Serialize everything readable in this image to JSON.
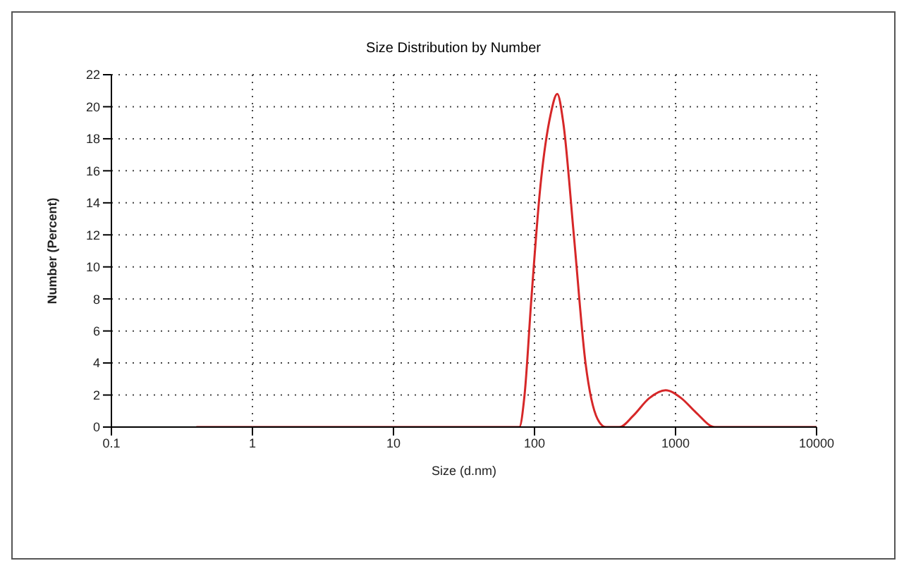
{
  "chart_data": {
    "type": "line",
    "title": "Size Distribution by Number",
    "xlabel": "Size (d.nm)",
    "ylabel": "Number (Percent)",
    "log": "x",
    "xlim": [
      0.1,
      10000
    ],
    "xticks": [
      0.1,
      1,
      10,
      100,
      1000,
      10000
    ],
    "ylim": [
      0,
      22
    ],
    "yticks": [
      0,
      2,
      4,
      6,
      8,
      10,
      12,
      14,
      16,
      18,
      20,
      22
    ],
    "grid": true,
    "marker": "none",
    "line_style": "solid",
    "series": [
      {
        "color": "#d62728",
        "x": [
          0.4,
          1,
          10,
          60,
          78,
          85,
          95,
          110,
          130,
          145,
          160,
          190,
          230,
          280,
          320,
          400,
          500,
          650,
          850,
          1100,
          1400,
          1900,
          3000,
          10000
        ],
        "values": [
          0,
          0,
          0,
          0,
          0,
          2,
          8,
          15,
          19.5,
          20.8,
          19,
          12,
          4,
          0.5,
          0,
          0,
          0.7,
          1.8,
          2.3,
          1.8,
          0.9,
          0,
          0,
          0
        ]
      }
    ]
  }
}
